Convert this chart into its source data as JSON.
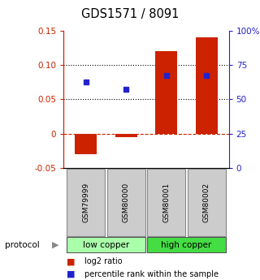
{
  "title": "GDS1571 / 8091",
  "samples": [
    "GSM79999",
    "GSM80000",
    "GSM80001",
    "GSM80002"
  ],
  "log2_ratio": [
    -0.03,
    -0.005,
    0.12,
    0.14
  ],
  "percentile_rank": [
    0.075,
    0.065,
    0.085,
    0.085
  ],
  "bar_color": "#cc2200",
  "dot_color": "#2222cc",
  "ylim_left": [
    -0.05,
    0.15
  ],
  "ylim_right": [
    0,
    100
  ],
  "yticks_left": [
    -0.05,
    0,
    0.05,
    0.1,
    0.15
  ],
  "ytick_labels_left": [
    "-0.05",
    "0",
    "0.05",
    "0.10",
    "0.15"
  ],
  "yticks_right": [
    0,
    25,
    50,
    75,
    100
  ],
  "ytick_labels_right": [
    "0",
    "25",
    "50",
    "75",
    "100%"
  ],
  "hlines": [
    0.05,
    0.1
  ],
  "protocol_groups": [
    {
      "label": "low copper",
      "color": "#aaffaa",
      "start": 0,
      "end": 2
    },
    {
      "label": "high copper",
      "color": "#44dd44",
      "start": 2,
      "end": 4
    }
  ],
  "legend_bar_label": "log2 ratio",
  "legend_dot_label": "percentile rank within the sample",
  "protocol_label": "protocol",
  "bar_width": 0.55
}
